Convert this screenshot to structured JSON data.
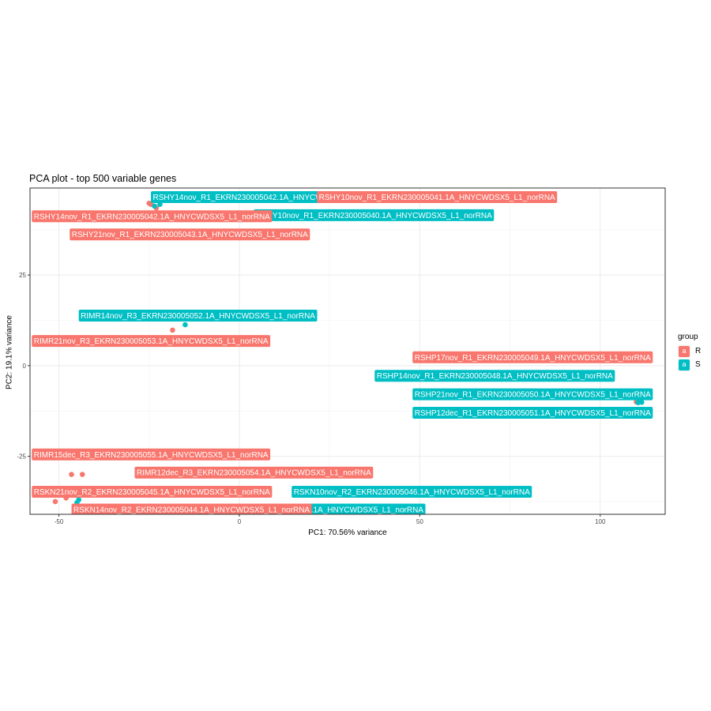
{
  "chart_data": {
    "type": "scatter",
    "title": "PCA plot - top 500 variable genes",
    "xlabel": "PC1: 70.56% variance",
    "ylabel": "PC2: 19.1% variance",
    "xlim": [
      -58,
      118
    ],
    "ylim": [
      -41,
      49
    ],
    "xticks": [
      -50,
      0,
      50,
      100
    ],
    "yticks": [
      -25,
      0,
      25
    ],
    "grid": true,
    "legend": {
      "title": "group",
      "placement": "right",
      "key_glyph": "a",
      "entries": [
        {
          "name": "R",
          "color": "#F8766D"
        },
        {
          "name": "S",
          "color": "#00BFC4"
        }
      ]
    },
    "points": [
      {
        "label": "RSHY14nov_R1_EKRN230005042.1A_HNYCWDSX5_L1_norRNA",
        "group": "S",
        "x": -22,
        "y": 44.5
      },
      {
        "label": "RSHY10nov_R1_EKRN230005041.1A_HNYCWDSX5_L1_norRNA",
        "group": "R",
        "x": -24.5,
        "y": 44.5
      },
      {
        "label": "RSHY14nov_R1_EKRN230005042.1A_HNYCWDSX5_L1_norRNA",
        "group": "R",
        "x": -23,
        "y": 43.5
      },
      {
        "label": "RSHY10nov_R1_EKRN230005040.1A_HNYCWDSX5_L1_norRNA",
        "group": "S",
        "x": -23.5,
        "y": 44
      },
      {
        "label": "RSHY21nov_R1_EKRN230005043.1A_HNYCWDSX5_L1_norRNA",
        "group": "R",
        "x": -25,
        "y": 44.8
      },
      {
        "label": "RIMR14nov_R3_EKRN230005052.1A_HNYCWDSX5_L1_norRNA",
        "group": "S",
        "x": -15,
        "y": 11.3
      },
      {
        "label": "RIMR21nov_R3_EKRN230005053.1A_HNYCWDSX5_L1_norRNA",
        "group": "R",
        "x": -18.5,
        "y": 9.8
      },
      {
        "label": "RSHP17nov_R1_EKRN230005049.1A_HNYCWDSX5_L1_norRNA",
        "group": "R",
        "x": 110,
        "y": -10
      },
      {
        "label": "RSHP14nov_R1_EKRN230005048.1A_HNYCWDSX5_L1_norRNA",
        "group": "S",
        "x": 111,
        "y": -10
      },
      {
        "label": "RSHP21nov_R1_EKRN230005050.1A_HNYCWDSX5_L1_norRNA",
        "group": "S",
        "x": 110.5,
        "y": -10.2
      },
      {
        "label": "RSHP12dec_R1_EKRN230005051.1A_HNYCWDSX5_L1_norRNA",
        "group": "S",
        "x": 111.5,
        "y": -10.1
      },
      {
        "label": "RIMR15dec_R3_EKRN230005055.1A_HNYCWDSX5_L1_norRNA",
        "group": "R",
        "x": -46.5,
        "y": -30
      },
      {
        "label": "RIMR12dec_R3_EKRN230005054.1A_HNYCWDSX5_L1_norRNA",
        "group": "R",
        "x": -43.5,
        "y": -30
      },
      {
        "label": "RSKN21nov_R2_EKRN230005045.1A_HNYCWDSX5_L1_norRNA",
        "group": "R",
        "x": -48,
        "y": -36.5
      },
      {
        "label": "RSKN10nov_R2_EKRN230005046.1A_HNYCWDSX5_L1_norRNA",
        "group": "S",
        "x": -44.5,
        "y": -37
      },
      {
        "label": "RSKN14nov_R2_EKRN230005044.1A_HNYCWDSX5_L1_norRNA",
        "group": "R",
        "x": -51,
        "y": -37.5
      },
      {
        "label": "RSKN21nov_R2_EKRN230005047.1A_HNYCWDSX5_L1_norRNA",
        "group": "S",
        "x": -45,
        "y": -37.8
      }
    ],
    "labels_drawn": [
      {
        "text": "RSHY14nov_R1_EKRN230005042.1A_HNYCWDSX5_L1_norRNA",
        "group": "S",
        "x": -24.5,
        "y": 46.5
      },
      {
        "text": "RSHY10nov_R1_EKRN230005041.1A_HNYCWDSX5_L1_norRNA",
        "group": "R",
        "x": 21.5,
        "y": 46.5
      },
      {
        "text": "RSHY10nov_R1_EKRN230005040.1A_HNYCWDSX5_L1_norRNA",
        "group": "S",
        "x": 4,
        "y": 41.5
      },
      {
        "text": "RSHY14nov_R1_EKRN230005042.1A_HNYCWDSX5_L1_norRNA",
        "group": "R",
        "x": -57.5,
        "y": 41.2
      },
      {
        "text": "RSHY21nov_R1_EKRN230005043.1A_HNYCWDSX5_L1_norRNA",
        "group": "R",
        "x": -47,
        "y": 36.2
      },
      {
        "text": "RIMR14nov_R3_EKRN230005052.1A_HNYCWDSX5_L1_norRNA",
        "group": "S",
        "x": -44.5,
        "y": 13.8
      },
      {
        "text": "RIMR21nov_R3_EKRN230005053.1A_HNYCWDSX5_L1_norRNA",
        "group": "R",
        "x": -57.5,
        "y": 6.8
      },
      {
        "text": "RSHP17nov_R1_EKRN230005049.1A_HNYCWDSX5_L1_norRNA",
        "group": "R",
        "x": 48,
        "y": 2.3
      },
      {
        "text": "RSHP14nov_R1_EKRN230005048.1A_HNYCWDSX5_L1_norRNA",
        "group": "S",
        "x": 37.5,
        "y": -2.8
      },
      {
        "text": "RSHP21nov_R1_EKRN230005050.1A_HNYCWDSX5_L1_norRNA",
        "group": "S",
        "x": 48,
        "y": -7.9
      },
      {
        "text": "RSHP12dec_R1_EKRN230005051.1A_HNYCWDSX5_L1_norRNA",
        "group": "S",
        "x": 48,
        "y": -13
      },
      {
        "text": "RIMR15dec_R3_EKRN230005055.1A_HNYCWDSX5_L1_norRNA",
        "group": "R",
        "x": -57.5,
        "y": -24.5
      },
      {
        "text": "RIMR12dec_R3_EKRN230005054.1A_HNYCWDSX5_L1_norRNA",
        "group": "R",
        "x": -29,
        "y": -29.5
      },
      {
        "text": "RSKN21nov_R2_EKRN230005045.1A_HNYCWDSX5_L1_norRNA",
        "group": "R",
        "x": -57.5,
        "y": -34.8
      },
      {
        "text": "RSKN10nov_R2_EKRN230005046.1A_HNYCWDSX5_L1_norRNA",
        "group": "S",
        "x": 14.5,
        "y": -34.8
      },
      {
        "text": "RSKN21nov_R2_EKRN230005047.1A_HNYCWDSX5_L1_norRNA",
        "group": "S",
        "x": -15,
        "y": -39.7
      },
      {
        "text": "RSKN14nov_R2_EKRN230005044.1A_HNYCWDSX5_L1_norRNA",
        "group": "R",
        "x": -46.5,
        "y": -39.7
      }
    ]
  }
}
